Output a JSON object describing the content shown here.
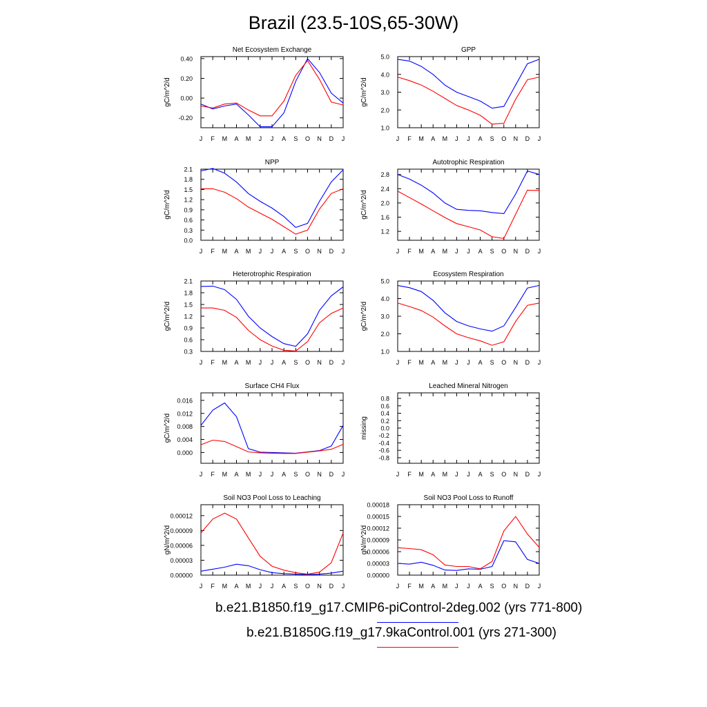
{
  "title": "Brazil (23.5-10S,65-30W)",
  "colors": {
    "case1": "#0000ff",
    "case2": "#ff0000"
  },
  "legend": [
    {
      "label": "b.e21.B1850.f19_g17.CMIP6-piControl-2deg.002 (yrs 771-800)",
      "color": "#0000ff"
    },
    {
      "label": "b.e21.B1850G.f19_g17.9kaControl.001 (yrs 271-300)",
      "color": "#ff0000"
    }
  ],
  "chart_data": [
    {
      "type": "line",
      "title": "Net Ecosystem Exchange",
      "ylabel": "gC/m^2/d",
      "categories": [
        "J",
        "F",
        "M",
        "A",
        "M",
        "J",
        "J",
        "A",
        "S",
        "O",
        "N",
        "D",
        "J"
      ],
      "ylim": [
        -0.3,
        0.42
      ],
      "yticks": [
        -0.2,
        0.0,
        0.2,
        0.4
      ],
      "ytick_labels": [
        "-0.20",
        "0.00",
        "0.20",
        "0.40"
      ],
      "series": [
        {
          "values": [
            -0.06,
            -0.11,
            -0.08,
            -0.06,
            -0.17,
            -0.29,
            -0.29,
            -0.15,
            0.17,
            0.4,
            0.26,
            0.05,
            -0.05
          ]
        },
        {
          "values": [
            -0.08,
            -0.1,
            -0.06,
            -0.05,
            -0.12,
            -0.18,
            -0.18,
            -0.03,
            0.23,
            0.38,
            0.19,
            -0.04,
            -0.07
          ]
        }
      ]
    },
    {
      "type": "line",
      "title": "GPP",
      "ylabel": "gC/m^2/d",
      "categories": [
        "J",
        "F",
        "M",
        "A",
        "M",
        "J",
        "J",
        "A",
        "S",
        "O",
        "N",
        "D",
        "J"
      ],
      "ylim": [
        1.0,
        5.0
      ],
      "yticks": [
        1.0,
        2.0,
        3.0,
        4.0,
        5.0
      ],
      "ytick_labels": [
        "1.0",
        "2.0",
        "3.0",
        "4.0",
        "5.0"
      ],
      "series": [
        {
          "values": [
            4.85,
            4.75,
            4.45,
            4.0,
            3.4,
            3.0,
            2.75,
            2.5,
            2.1,
            2.2,
            3.4,
            4.6,
            4.85
          ]
        },
        {
          "values": [
            3.85,
            3.65,
            3.4,
            3.05,
            2.65,
            2.25,
            2.0,
            1.7,
            1.2,
            1.25,
            2.6,
            3.7,
            3.85
          ]
        }
      ]
    },
    {
      "type": "line",
      "title": "NPP",
      "ylabel": "gC/m^2/d",
      "categories": [
        "J",
        "F",
        "M",
        "A",
        "M",
        "J",
        "J",
        "A",
        "S",
        "O",
        "N",
        "D",
        "J"
      ],
      "ylim": [
        0.0,
        2.1
      ],
      "yticks": [
        0.0,
        0.3,
        0.6,
        0.9,
        1.2,
        1.5,
        1.8,
        2.1
      ],
      "ytick_labels": [
        "0.0",
        "0.3",
        "0.6",
        "0.9",
        "1.2",
        "1.5",
        "1.8",
        "2.1"
      ],
      "series": [
        {
          "values": [
            2.05,
            2.12,
            1.98,
            1.72,
            1.38,
            1.15,
            0.95,
            0.7,
            0.38,
            0.5,
            1.15,
            1.72,
            2.08
          ]
        },
        {
          "values": [
            1.52,
            1.52,
            1.42,
            1.23,
            0.98,
            0.8,
            0.62,
            0.4,
            0.18,
            0.3,
            0.92,
            1.38,
            1.52
          ]
        }
      ]
    },
    {
      "type": "line",
      "title": "Autotrophic Respiration",
      "ylabel": "gC/m^2/d",
      "categories": [
        "J",
        "F",
        "M",
        "A",
        "M",
        "J",
        "J",
        "A",
        "S",
        "O",
        "N",
        "D",
        "J"
      ],
      "ylim": [
        0.95,
        2.95
      ],
      "yticks": [
        1.2,
        1.6,
        2.0,
        2.4,
        2.8
      ],
      "ytick_labels": [
        "1.2",
        "1.6",
        "2.0",
        "2.4",
        "2.8"
      ],
      "series": [
        {
          "values": [
            2.8,
            2.67,
            2.5,
            2.28,
            2.0,
            1.82,
            1.79,
            1.78,
            1.73,
            1.7,
            2.25,
            2.9,
            2.8
          ]
        },
        {
          "values": [
            2.33,
            2.15,
            1.97,
            1.78,
            1.59,
            1.42,
            1.33,
            1.24,
            1.05,
            1.0,
            1.68,
            2.36,
            2.35
          ]
        }
      ]
    },
    {
      "type": "line",
      "title": "Heterotrophic Respiration",
      "ylabel": "gC/m^2/d",
      "categories": [
        "J",
        "F",
        "M",
        "A",
        "M",
        "J",
        "J",
        "A",
        "S",
        "O",
        "N",
        "D",
        "J"
      ],
      "ylim": [
        0.3,
        2.1
      ],
      "yticks": [
        0.3,
        0.6,
        0.9,
        1.2,
        1.5,
        1.8,
        2.1
      ],
      "ytick_labels": [
        "0.3",
        "0.6",
        "0.9",
        "1.2",
        "1.5",
        "1.8",
        "2.1"
      ],
      "series": [
        {
          "values": [
            1.96,
            1.97,
            1.88,
            1.63,
            1.2,
            0.9,
            0.68,
            0.5,
            0.43,
            0.75,
            1.35,
            1.72,
            1.95
          ]
        },
        {
          "values": [
            1.41,
            1.41,
            1.35,
            1.17,
            0.84,
            0.6,
            0.44,
            0.33,
            0.31,
            0.55,
            1.03,
            1.27,
            1.41
          ]
        }
      ]
    },
    {
      "type": "line",
      "title": "Ecosystem Respiration",
      "ylabel": "gC/m^2/d",
      "categories": [
        "J",
        "F",
        "M",
        "A",
        "M",
        "J",
        "J",
        "A",
        "S",
        "O",
        "N",
        "D",
        "J"
      ],
      "ylim": [
        1.0,
        5.0
      ],
      "yticks": [
        1.0,
        2.0,
        3.0,
        4.0,
        5.0
      ],
      "ytick_labels": [
        "1.0",
        "2.0",
        "3.0",
        "4.0",
        "5.0"
      ],
      "series": [
        {
          "values": [
            4.75,
            4.62,
            4.4,
            3.9,
            3.2,
            2.7,
            2.45,
            2.28,
            2.15,
            2.45,
            3.5,
            4.6,
            4.75
          ]
        },
        {
          "values": [
            3.75,
            3.55,
            3.32,
            2.95,
            2.45,
            2.0,
            1.78,
            1.6,
            1.35,
            1.55,
            2.7,
            3.62,
            3.75
          ]
        }
      ]
    },
    {
      "type": "line",
      "title": "Surface CH4 Flux",
      "ylabel": "gC/m^2/d",
      "categories": [
        "J",
        "F",
        "M",
        "A",
        "M",
        "J",
        "J",
        "A",
        "S",
        "O",
        "N",
        "D",
        "J"
      ],
      "ylim": [
        -0.0033,
        0.0183
      ],
      "yticks": [
        0.0,
        0.004,
        0.008,
        0.012,
        0.016
      ],
      "ytick_labels": [
        "0.000",
        "0.004",
        "0.008",
        "0.012",
        "0.016"
      ],
      "series": [
        {
          "values": [
            0.0083,
            0.013,
            0.0152,
            0.011,
            0.0012,
            0.0001,
            0.0,
            -0.0001,
            -0.0002,
            0.0002,
            0.0006,
            0.002,
            0.0083
          ]
        },
        {
          "values": [
            0.0024,
            0.0038,
            0.0034,
            0.0018,
            0.0002,
            -0.0001,
            -0.0002,
            -0.0003,
            -0.0003,
            0.0001,
            0.0005,
            0.001,
            0.0025
          ]
        }
      ]
    },
    {
      "type": "line",
      "title": "Leached Mineral Nitrogen",
      "ylabel": "missing",
      "categories": [
        "J",
        "F",
        "M",
        "A",
        "M",
        "J",
        "J",
        "A",
        "S",
        "O",
        "N",
        "D",
        "J"
      ],
      "ylim": [
        -0.95,
        0.95
      ],
      "yticks": [
        -0.8,
        -0.4,
        0.0,
        0.4,
        0.8
      ],
      "ytick_labels": [
        "-0.8",
        "-0.4",
        "0.0",
        "0.4",
        "0.8"
      ],
      "yticks_minor": [
        -0.6,
        -0.2,
        0.2,
        0.6
      ],
      "ytick_labels_minor": [
        "-0.6",
        "-0.2",
        "0.2",
        "0.6"
      ],
      "series": []
    },
    {
      "type": "line",
      "title": "Soil NO3 Pool Loss to Leaching",
      "ylabel": "gN/m^2/d",
      "categories": [
        "J",
        "F",
        "M",
        "A",
        "M",
        "J",
        "J",
        "A",
        "S",
        "O",
        "N",
        "D",
        "J"
      ],
      "ylim": [
        0.0,
        0.000142
      ],
      "yticks": [
        0.0,
        3e-05,
        6e-05,
        9e-05,
        0.00012
      ],
      "ytick_labels": [
        "0.00000",
        "0.00003",
        "0.00006",
        "0.00009",
        "0.00012"
      ],
      "series": [
        {
          "values": [
            8e-06,
            1.2e-05,
            1.6e-05,
            2.2e-05,
            1.9e-05,
            1.1e-05,
            5e-06,
            3e-06,
            2e-06,
            1e-06,
            2e-06,
            4e-06,
            8e-06
          ]
        },
        {
          "values": [
            8.5e-05,
            0.000113,
            0.000125,
            0.000113,
            7.5e-05,
            3.8e-05,
            1.8e-05,
            1e-05,
            5e-06,
            2e-06,
            6e-06,
            2.5e-05,
            8.5e-05
          ]
        }
      ]
    },
    {
      "type": "line",
      "title": "Soil NO3 Pool Loss to Runoff",
      "ylabel": "gN/m^2/d",
      "categories": [
        "J",
        "F",
        "M",
        "A",
        "M",
        "J",
        "J",
        "A",
        "S",
        "O",
        "N",
        "D",
        "J"
      ],
      "ylim": [
        0.0,
        0.00018
      ],
      "yticks": [
        0.0,
        3e-05,
        6e-05,
        9e-05,
        0.00012,
        0.00015,
        0.00018
      ],
      "ytick_labels": [
        "0.00000",
        "0.00003",
        "0.00006",
        "0.00009",
        "0.00012",
        "0.00015",
        "0.00018"
      ],
      "series": [
        {
          "values": [
            3e-05,
            2.8e-05,
            3.3e-05,
            2.5e-05,
            1.3e-05,
            1.2e-05,
            1.6e-05,
            1.5e-05,
            2.2e-05,
            8.8e-05,
            8.5e-05,
            4e-05,
            3e-05
          ]
        },
        {
          "values": [
            7e-05,
            6.8e-05,
            6.5e-05,
            5.2e-05,
            2.6e-05,
            2.2e-05,
            2.2e-05,
            1.6e-05,
            3.5e-05,
            0.000113,
            0.00015,
            0.000105,
            7.1e-05
          ]
        }
      ]
    }
  ]
}
